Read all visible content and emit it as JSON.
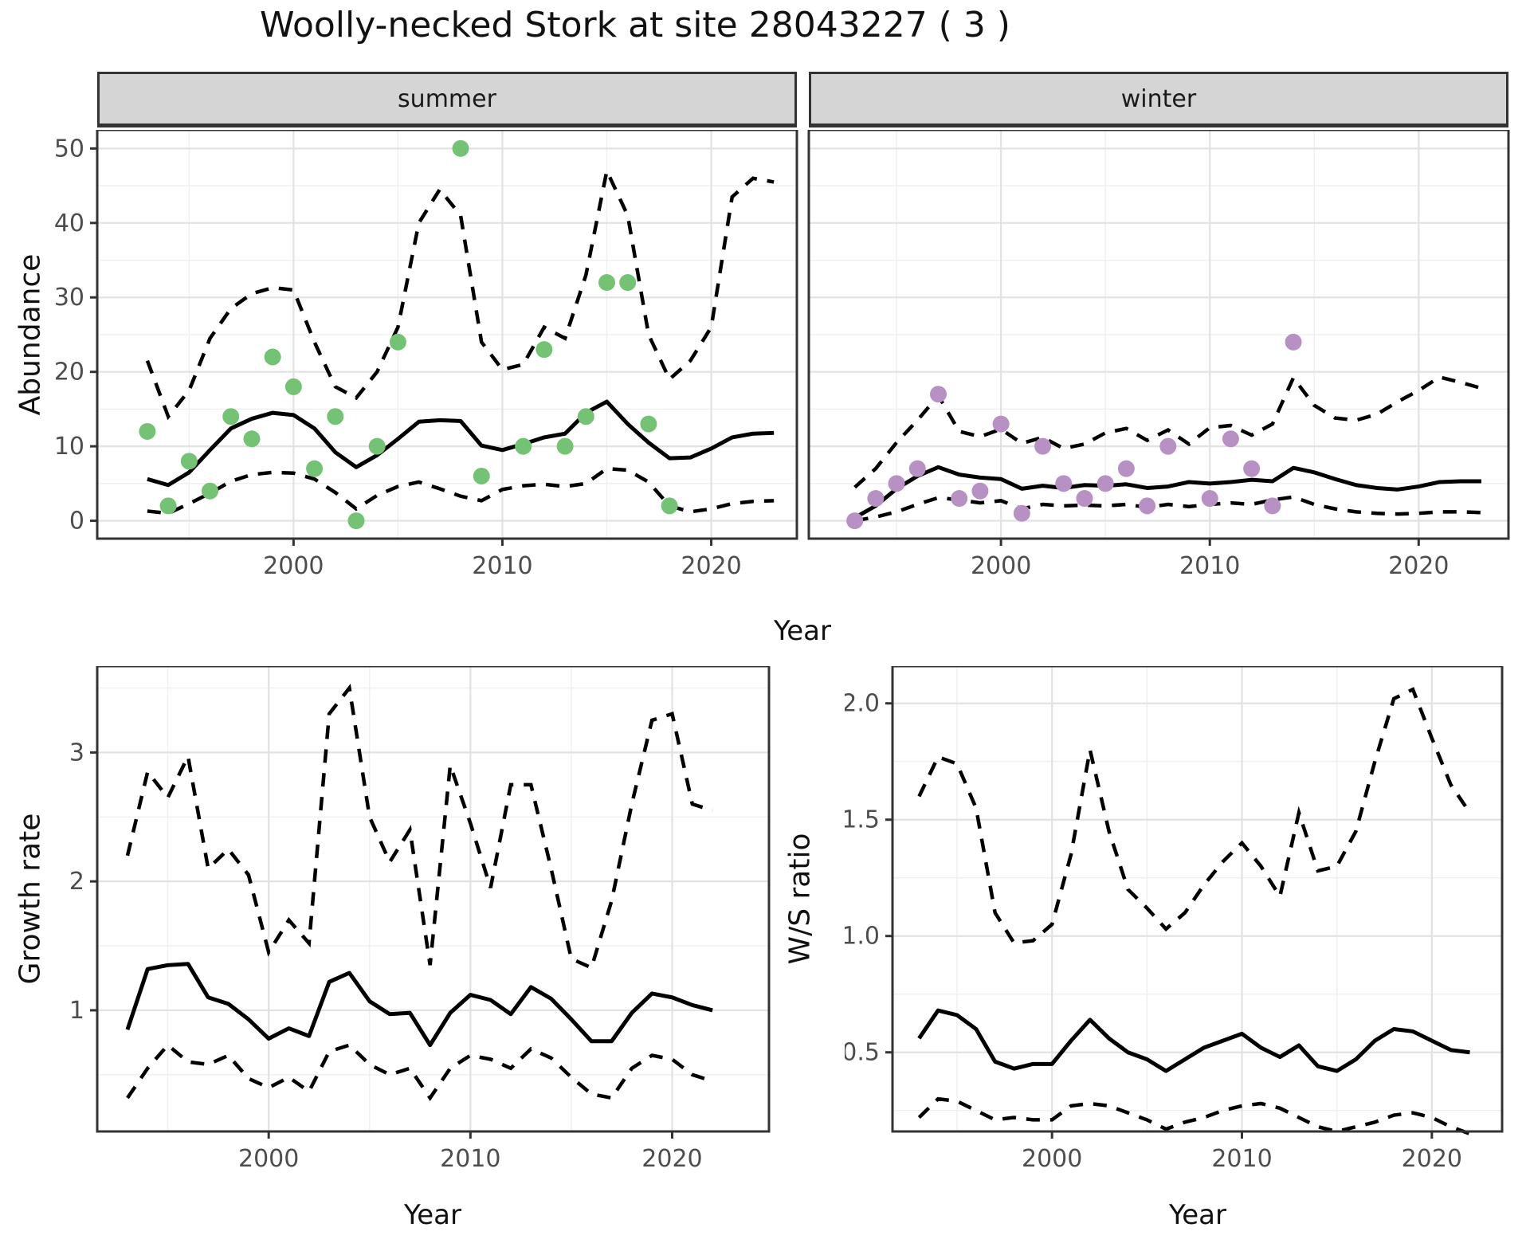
{
  "title": "Woolly-necked Stork at site 28043227 ( 3 )",
  "colors": {
    "summer_point": "#74c374",
    "winter_point": "#b790c4",
    "line": "#000000",
    "strip_bg": "#d5d5d5",
    "panel_border": "#333333",
    "grid_major": "#e2e2e2",
    "grid_minor": "#efefef",
    "tick_text": "#4d4d4d"
  },
  "top_axis": {
    "xlabel": "Year"
  },
  "chart_data": [
    {
      "id": "abundance-summer",
      "type": "line",
      "facet_label": "summer",
      "ylabel": "Abundance",
      "xlabel": "Year",
      "legend": "none",
      "grid": "on",
      "xlim": [
        1990.6,
        2024.1
      ],
      "ylim": [
        -2.4,
        52.5
      ],
      "xticks": [
        2000,
        2010,
        2020
      ],
      "xtick_labels": [
        "2000",
        "2010",
        "2020"
      ],
      "yticks": [
        0,
        10,
        20,
        30,
        40,
        50
      ],
      "ytick_labels": [
        "0",
        "10",
        "20",
        "30",
        "40",
        "50"
      ],
      "years": [
        1993,
        1994,
        1995,
        1996,
        1997,
        1998,
        1999,
        2000,
        2001,
        2002,
        2003,
        2004,
        2005,
        2006,
        2007,
        2008,
        2009,
        2010,
        2011,
        2012,
        2013,
        2014,
        2015,
        2016,
        2017,
        2018,
        2019,
        2020,
        2021,
        2022,
        2023
      ],
      "mean": [
        5.6,
        4.8,
        6.5,
        9.5,
        12.4,
        13.7,
        14.5,
        14.2,
        12.4,
        9.2,
        7.2,
        8.8,
        11.0,
        13.3,
        13.5,
        13.4,
        10.1,
        9.5,
        10.3,
        11.2,
        11.7,
        14.5,
        16.0,
        13.0,
        10.5,
        8.4,
        8.5,
        9.7,
        11.2,
        11.7,
        11.8
      ],
      "upper": [
        21.5,
        14.0,
        17.5,
        24.5,
        28.5,
        30.5,
        31.3,
        31.0,
        24.0,
        18.0,
        16.5,
        20.0,
        26.0,
        40.0,
        44.5,
        41.0,
        24.0,
        20.3,
        21.0,
        26.0,
        24.5,
        33.0,
        47.0,
        41.0,
        25.0,
        19.0,
        21.5,
        26.0,
        43.5,
        46.0,
        45.5
      ],
      "lower": [
        1.3,
        1.0,
        2.3,
        3.7,
        5.3,
        6.2,
        6.5,
        6.4,
        5.6,
        3.8,
        1.6,
        3.4,
        4.6,
        5.2,
        4.3,
        3.3,
        2.7,
        4.2,
        4.7,
        4.9,
        4.6,
        5.0,
        7.0,
        6.8,
        5.2,
        2.0,
        1.2,
        1.6,
        2.3,
        2.6,
        2.7
      ],
      "obs_years": [
        1993,
        1994,
        1995,
        1996,
        1997,
        1998,
        1999,
        2000,
        2001,
        2002,
        2003,
        2004,
        2005,
        2008,
        2009,
        2011,
        2012,
        2013,
        2014,
        2015,
        2016,
        2017,
        2018
      ],
      "obs_values": [
        12,
        2,
        8,
        4,
        14,
        11,
        22,
        18,
        7,
        14,
        0,
        10,
        24,
        50,
        6,
        10,
        23,
        10,
        14,
        32,
        32,
        13,
        2
      ],
      "point_color": "#74c374",
      "show_y_axis": true
    },
    {
      "id": "abundance-winter",
      "type": "line",
      "facet_label": "winter",
      "ylabel": "Abundance",
      "xlabel": "Year",
      "legend": "none",
      "grid": "on",
      "xlim": [
        1990.8,
        2024.3
      ],
      "ylim": [
        -2.4,
        52.5
      ],
      "xticks": [
        2000,
        2010,
        2020
      ],
      "xtick_labels": [
        "2000",
        "2010",
        "2020"
      ],
      "yticks": [
        0,
        10,
        20,
        30,
        40,
        50
      ],
      "ytick_labels": [
        "0",
        "10",
        "20",
        "30",
        "40",
        "50"
      ],
      "years": [
        1993,
        1994,
        1995,
        1996,
        1997,
        1998,
        1999,
        2000,
        2001,
        2002,
        2003,
        2004,
        2005,
        2006,
        2007,
        2008,
        2009,
        2010,
        2011,
        2012,
        2013,
        2014,
        2015,
        2016,
        2017,
        2018,
        2019,
        2020,
        2021,
        2022,
        2023
      ],
      "mean": [
        0.4,
        2.0,
        4.3,
        6.0,
        7.2,
        6.2,
        5.8,
        5.6,
        4.3,
        4.7,
        4.4,
        4.8,
        4.7,
        4.9,
        4.4,
        4.6,
        5.2,
        5.0,
        5.2,
        5.5,
        5.3,
        7.1,
        6.5,
        5.6,
        4.8,
        4.4,
        4.2,
        4.6,
        5.2,
        5.3,
        5.3
      ],
      "upper": [
        4.5,
        7.0,
        10.5,
        13.5,
        16.8,
        12.0,
        11.3,
        12.3,
        10.4,
        11.2,
        9.7,
        10.3,
        11.8,
        12.4,
        10.8,
        12.2,
        10.3,
        12.5,
        12.8,
        11.5,
        13.0,
        19.2,
        15.5,
        13.8,
        13.5,
        14.3,
        16.0,
        17.5,
        19.3,
        18.6,
        17.8
      ],
      "lower": [
        0.0,
        0.5,
        1.2,
        2.2,
        3.1,
        2.8,
        2.4,
        2.7,
        1.6,
        2.2,
        2.0,
        2.1,
        2.0,
        2.2,
        1.8,
        2.2,
        1.9,
        2.2,
        2.4,
        2.2,
        2.8,
        3.2,
        2.2,
        1.6,
        1.2,
        1.0,
        0.9,
        1.0,
        1.2,
        1.2,
        1.1
      ],
      "obs_years": [
        1993,
        1994,
        1995,
        1996,
        1997,
        1998,
        1999,
        2000,
        2001,
        2002,
        2003,
        2004,
        2005,
        2006,
        2007,
        2008,
        2010,
        2011,
        2012,
        2013,
        2014
      ],
      "obs_values": [
        0,
        3,
        5,
        7,
        17,
        3,
        4,
        13,
        1,
        10,
        5,
        3,
        5,
        7,
        2,
        10,
        3,
        11,
        7,
        2,
        24
      ],
      "point_color": "#b790c4",
      "show_y_axis": false
    },
    {
      "id": "growth-rate",
      "type": "line",
      "facet_label": "",
      "ylabel": "Growth rate",
      "xlabel": "Year",
      "legend": "none",
      "grid": "on",
      "xlim": [
        1991.5,
        2024.8
      ],
      "ylim": [
        0.06,
        3.67
      ],
      "xticks": [
        2000,
        2010,
        2020
      ],
      "xtick_labels": [
        "2000",
        "2010",
        "2020"
      ],
      "yticks": [
        1,
        2,
        3
      ],
      "ytick_labels": [
        "1",
        "2",
        "3"
      ],
      "years": [
        1993,
        1994,
        1995,
        1996,
        1997,
        1998,
        1999,
        2000,
        2001,
        2002,
        2003,
        2004,
        2005,
        2006,
        2007,
        2008,
        2009,
        2010,
        2011,
        2012,
        2013,
        2014,
        2015,
        2016,
        2017,
        2018,
        2019,
        2020,
        2021,
        2022
      ],
      "mean": [
        0.85,
        1.32,
        1.35,
        1.36,
        1.1,
        1.05,
        0.93,
        0.78,
        0.86,
        0.8,
        1.22,
        1.29,
        1.07,
        0.97,
        0.98,
        0.73,
        0.98,
        1.12,
        1.08,
        0.97,
        1.18,
        1.09,
        0.93,
        0.76,
        0.76,
        0.98,
        1.13,
        1.1,
        1.04,
        1.0
      ],
      "upper": [
        2.2,
        2.85,
        2.65,
        2.97,
        2.1,
        2.25,
        2.05,
        1.45,
        1.7,
        1.52,
        3.3,
        3.5,
        2.5,
        2.15,
        2.4,
        1.35,
        2.9,
        2.45,
        1.95,
        2.75,
        2.75,
        2.1,
        1.4,
        1.33,
        1.85,
        2.6,
        3.25,
        3.3,
        2.6,
        2.55
      ],
      "lower": [
        0.32,
        0.55,
        0.73,
        0.6,
        0.58,
        0.65,
        0.47,
        0.4,
        0.48,
        0.37,
        0.68,
        0.73,
        0.58,
        0.5,
        0.55,
        0.32,
        0.55,
        0.65,
        0.62,
        0.55,
        0.7,
        0.63,
        0.48,
        0.35,
        0.32,
        0.55,
        0.65,
        0.62,
        0.5,
        0.45
      ],
      "obs_years": [],
      "obs_values": [],
      "point_color": "#000000",
      "show_y_axis": true
    },
    {
      "id": "ws-ratio",
      "type": "line",
      "facet_label": "",
      "ylabel": "W/S ratio",
      "xlabel": "Year",
      "legend": "none",
      "grid": "on",
      "xlim": [
        1991.6,
        2023.7
      ],
      "ylim": [
        0.16,
        2.16
      ],
      "xticks": [
        2000,
        2010,
        2020
      ],
      "xtick_labels": [
        "2000",
        "2010",
        "2020"
      ],
      "yticks": [
        0.5,
        1.0,
        1.5,
        2.0
      ],
      "ytick_labels": [
        "0.5",
        "1.0",
        "1.5",
        "2.0"
      ],
      "years": [
        1993,
        1994,
        1995,
        1996,
        1997,
        1998,
        1999,
        2000,
        2001,
        2002,
        2003,
        2004,
        2005,
        2006,
        2007,
        2008,
        2009,
        2010,
        2011,
        2012,
        2013,
        2014,
        2015,
        2016,
        2017,
        2018,
        2019,
        2020,
        2021,
        2022
      ],
      "mean": [
        0.56,
        0.68,
        0.66,
        0.6,
        0.46,
        0.43,
        0.45,
        0.45,
        0.55,
        0.64,
        0.56,
        0.5,
        0.47,
        0.42,
        0.47,
        0.52,
        0.55,
        0.58,
        0.52,
        0.48,
        0.53,
        0.44,
        0.42,
        0.47,
        0.55,
        0.6,
        0.59,
        0.55,
        0.51,
        0.5
      ],
      "upper": [
        1.6,
        1.77,
        1.74,
        1.55,
        1.1,
        0.97,
        0.98,
        1.05,
        1.35,
        1.8,
        1.45,
        1.2,
        1.12,
        1.03,
        1.1,
        1.22,
        1.32,
        1.4,
        1.3,
        1.17,
        1.53,
        1.28,
        1.3,
        1.45,
        1.75,
        2.02,
        2.06,
        1.85,
        1.65,
        1.53
      ],
      "lower": [
        0.22,
        0.3,
        0.29,
        0.25,
        0.21,
        0.22,
        0.21,
        0.21,
        0.27,
        0.28,
        0.27,
        0.24,
        0.21,
        0.17,
        0.2,
        0.22,
        0.25,
        0.27,
        0.28,
        0.26,
        0.22,
        0.18,
        0.16,
        0.18,
        0.2,
        0.23,
        0.24,
        0.22,
        0.18,
        0.15
      ],
      "obs_years": [],
      "obs_values": [],
      "point_color": "#000000",
      "show_y_axis": true
    }
  ]
}
